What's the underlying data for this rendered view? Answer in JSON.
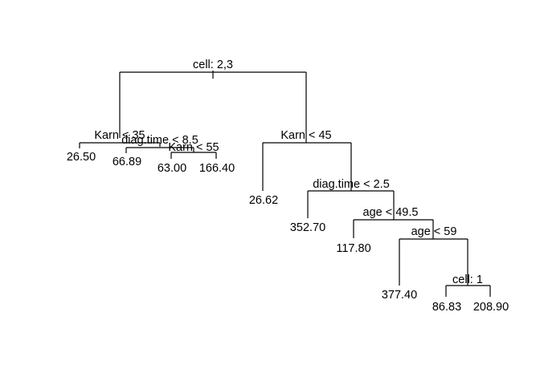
{
  "tree": {
    "splits": {
      "root": "cell: 2,3",
      "left_karn": "Karn < 35",
      "left_diag": "diag.time < 8.5",
      "left_karn55": "Karn < 55",
      "right_karn": "Karn < 45",
      "right_diag": "diag.time < 2.5",
      "right_age1": "age < 49.5",
      "right_age2": "age < 59",
      "right_cell": "cell: 1"
    },
    "leaves": {
      "l1": "26.50",
      "l2": "66.89",
      "l3": "63.00",
      "l4": "166.40",
      "r1": "26.62",
      "r2": "352.70",
      "r3": "117.80",
      "r4": "377.40",
      "r5": "86.83",
      "r6": "208.90"
    }
  }
}
